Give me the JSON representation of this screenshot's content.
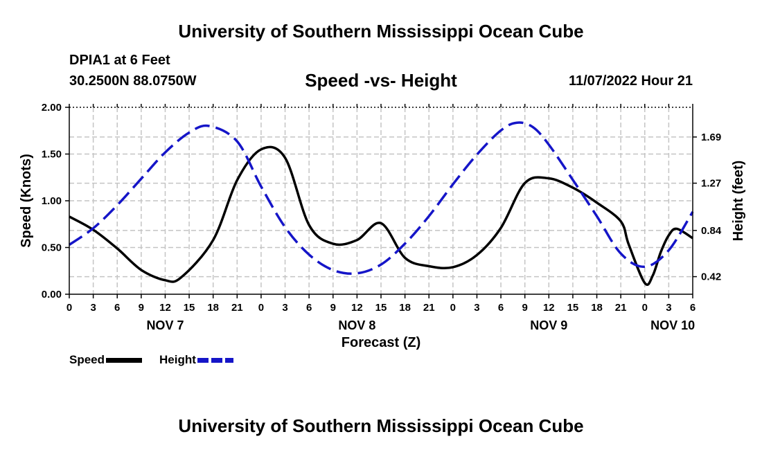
{
  "header": {
    "title": "University of Southern Mississippi Ocean Cube",
    "station": "DPIA1 at 6 Feet",
    "coordinates": "30.2500N  88.0750W",
    "subtitle": "Speed -vs- Height",
    "datetime": "11/07/2022 Hour 21"
  },
  "footer": {
    "title": "University of Southern Mississippi Ocean Cube"
  },
  "chart_data": {
    "type": "line",
    "title": "Speed -vs- Height",
    "xlabel": "Forecast (Z)",
    "ylabel": "Speed (Knots)",
    "y2label": "Height (feet)",
    "xlim": [
      0,
      78
    ],
    "ylim": [
      0,
      2.0
    ],
    "y2lim": [
      0.26,
      1.96
    ],
    "x_ticks": [
      {
        "hour": 0,
        "label": "0"
      },
      {
        "hour": 3,
        "label": "3"
      },
      {
        "hour": 6,
        "label": "6"
      },
      {
        "hour": 9,
        "label": "9"
      },
      {
        "hour": 12,
        "label": "12"
      },
      {
        "hour": 15,
        "label": "15"
      },
      {
        "hour": 18,
        "label": "18"
      },
      {
        "hour": 21,
        "label": "21"
      },
      {
        "hour": 24,
        "label": "0"
      },
      {
        "hour": 27,
        "label": "3"
      },
      {
        "hour": 30,
        "label": "6"
      },
      {
        "hour": 33,
        "label": "9"
      },
      {
        "hour": 36,
        "label": "12"
      },
      {
        "hour": 39,
        "label": "15"
      },
      {
        "hour": 42,
        "label": "18"
      },
      {
        "hour": 45,
        "label": "21"
      },
      {
        "hour": 48,
        "label": "0"
      },
      {
        "hour": 51,
        "label": "3"
      },
      {
        "hour": 54,
        "label": "6"
      },
      {
        "hour": 57,
        "label": "9"
      },
      {
        "hour": 60,
        "label": "12"
      },
      {
        "hour": 63,
        "label": "15"
      },
      {
        "hour": 66,
        "label": "18"
      },
      {
        "hour": 69,
        "label": "21"
      },
      {
        "hour": 72,
        "label": "0"
      },
      {
        "hour": 75,
        "label": "3"
      },
      {
        "hour": 78,
        "label": "6"
      }
    ],
    "day_labels": [
      {
        "hour": 12,
        "label": "NOV 7"
      },
      {
        "hour": 36,
        "label": "NOV 8"
      },
      {
        "hour": 60,
        "label": "NOV 9"
      },
      {
        "hour": 75.5,
        "label": "NOV 10"
      }
    ],
    "y_ticks": [
      {
        "value": 0,
        "label": "0.00"
      },
      {
        "value": 0.5,
        "label": "0.50"
      },
      {
        "value": 1.0,
        "label": "1.00"
      },
      {
        "value": 1.5,
        "label": "1.50"
      },
      {
        "value": 2.0,
        "label": "2.00"
      }
    ],
    "y2_ticks": [
      {
        "value": 0.42,
        "label": "0.42"
      },
      {
        "value": 0.84,
        "label": "0.84"
      },
      {
        "value": 1.27,
        "label": "1.27"
      },
      {
        "value": 1.69,
        "label": "1.69"
      }
    ],
    "series": [
      {
        "name": "Speed",
        "axis": "left",
        "color": "#000000",
        "style": "solid",
        "x": [
          0,
          3,
          6,
          9,
          12,
          14,
          18,
          21,
          24,
          27,
          30,
          33,
          36,
          39,
          42,
          45,
          48,
          51,
          54,
          57,
          60,
          63,
          66,
          69,
          70,
          72,
          73,
          74,
          75,
          76,
          78
        ],
        "y": [
          0.83,
          0.69,
          0.49,
          0.26,
          0.15,
          0.18,
          0.58,
          1.22,
          1.55,
          1.46,
          0.74,
          0.54,
          0.58,
          0.76,
          0.39,
          0.3,
          0.29,
          0.42,
          0.71,
          1.19,
          1.24,
          1.14,
          0.98,
          0.78,
          0.53,
          0.12,
          0.2,
          0.45,
          0.63,
          0.7,
          0.6
        ]
      },
      {
        "name": "Height",
        "axis": "right",
        "color": "#1515c8",
        "style": "dashed",
        "x": [
          0,
          3,
          6,
          9,
          12,
          15,
          17.5,
          21,
          24,
          27,
          30,
          33,
          36,
          39,
          42,
          45,
          48,
          51,
          54,
          56,
          58,
          60,
          63,
          66,
          69,
          72,
          75,
          78
        ],
        "y": [
          0.71,
          0.86,
          1.07,
          1.31,
          1.55,
          1.73,
          1.79,
          1.65,
          1.24,
          0.87,
          0.62,
          0.48,
          0.45,
          0.53,
          0.72,
          0.97,
          1.26,
          1.53,
          1.75,
          1.82,
          1.78,
          1.62,
          1.3,
          0.97,
          0.63,
          0.51,
          0.66,
          1.01
        ]
      }
    ],
    "legend": [
      {
        "label": "Speed",
        "color": "#000000",
        "style": "solid"
      },
      {
        "label": "Height",
        "color": "#1515c8",
        "style": "dashed"
      }
    ],
    "grid": true
  }
}
